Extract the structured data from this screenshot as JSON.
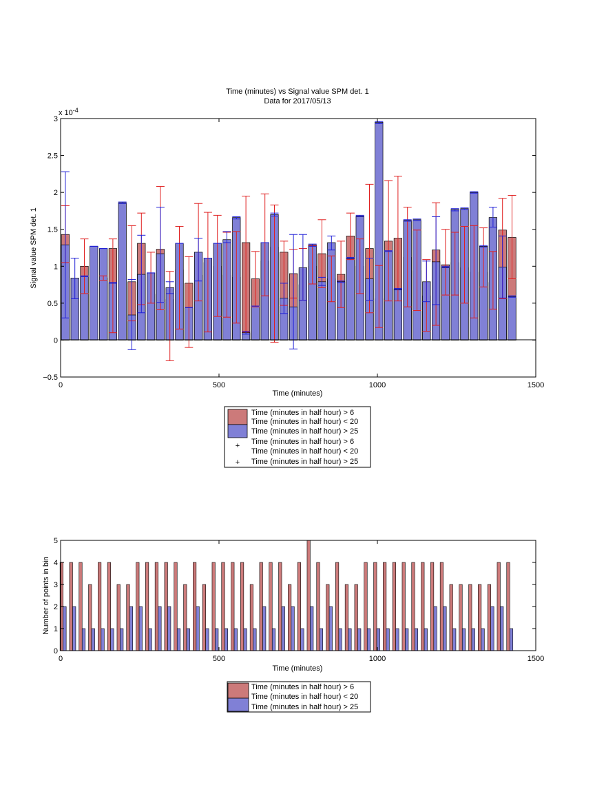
{
  "chart_data": [
    {
      "type": "bar",
      "title": "Time (minutes) vs Signal value SPM det. 1",
      "subtitle": "Data for 2017/05/13",
      "xlabel": "Time (minutes)",
      "ylabel": "Signal value SPM det. 1",
      "exponent_label": "x 10",
      "exponent_power": "-4",
      "xlim": [
        0,
        1500
      ],
      "ylim": [
        -0.5,
        3
      ],
      "x_ticks": [
        "0",
        "500",
        "1000",
        "1500"
      ],
      "y_ticks": [
        "−0.5",
        "0",
        "0.5",
        "1",
        "1.5",
        "2",
        "2.5",
        "3"
      ],
      "grid": false,
      "legend_position": "bottom-outside",
      "colors": {
        "red_bar": "#cc7a7a",
        "blue_bar": "#8080d6",
        "red_err": "#e02020",
        "blue_err": "#1f1fd6"
      },
      "legend": [
        "Time (minutes in half hour) > 6",
        "Time (minutes in half hour) < 20",
        "Time (minutes in half hour) > 25",
        "Time (minutes in half hour) > 6",
        "Time (minutes in half hour) < 20",
        "Time (minutes in half hour) > 25"
      ],
      "series": [
        {
          "x": [
            15,
            75,
            135,
            165,
            225,
            255,
            285,
            315,
            345,
            375,
            405,
            435,
            465,
            495,
            525,
            555,
            585,
            615,
            645,
            675,
            705,
            735,
            765,
            795,
            825,
            855,
            885,
            915,
            945,
            975,
            1005,
            1035,
            1065,
            1095,
            1125,
            1155,
            1185,
            1215,
            1245,
            1275,
            1305,
            1335,
            1365,
            1395,
            1425
          ],
          "values": [
            1.43,
            1.0,
            0.84,
            1.24,
            0.79,
            1.31,
            0.62,
            1.23,
            0.55,
            0.95,
            0.77,
            0.88,
            1.05,
            1.0,
            0.88,
            0.85,
            1.32,
            0.83,
            1.07,
            1.26,
            1.19,
            0.9,
            0.75,
            1.0,
            1.17,
            0.83,
            0.89,
            1.41,
            1.0,
            1.24,
            0.56,
            1.34,
            1.38,
            1.12,
            0.94,
            0.6,
            1.22,
            1.02,
            1.05,
            0.98,
            0.92,
            0.92,
            0.78,
            1.49,
            1.39
          ],
          "err_lo": [
            1.05,
            0.63,
            0.81,
            0.1,
            0.26,
            0.48,
            0.5,
            0.41,
            -0.28,
            0.15,
            -0.1,
            0.53,
            0.11,
            0.32,
            0.31,
            0.23,
            0.11,
            0.45,
            0.6,
            -0.03,
            0.47,
            0.57,
            0.54,
            0.76,
            0.71,
            0.52,
            0.44,
            1.09,
            0.63,
            0.37,
            0.17,
            0.53,
            0.53,
            0.45,
            0.4,
            0.12,
            0.2,
            0.61,
            0.61,
            0.5,
            0.3,
            0.72,
            0.42,
            0.56,
            0.83
          ],
          "err_hi": [
            1.82,
            1.37,
            0.87,
            1.37,
            1.55,
            1.72,
            1.19,
            2.08,
            0.93,
            1.54,
            1.13,
            1.85,
            1.73,
            1.69,
            1.46,
            1.47,
            1.95,
            1.2,
            1.98,
            1.83,
            1.34,
            1.23,
            1.24,
            1.28,
            1.63,
            1.14,
            1.34,
            1.72,
            1.37,
            2.11,
            1.01,
            2.16,
            2.22,
            1.8,
            1.49,
            1.09,
            1.86,
            1.5,
            1.46,
            1.54,
            1.55,
            1.52,
            1.2,
            1.92,
            1.96
          ]
        },
        {
          "x": [
            15,
            45,
            75,
            105,
            135,
            165,
            195,
            225,
            255,
            285,
            315,
            345,
            375,
            405,
            435,
            465,
            495,
            525,
            555,
            585,
            615,
            645,
            675,
            705,
            735,
            765,
            795,
            825,
            855,
            885,
            915,
            945,
            975,
            1005,
            1035,
            1065,
            1095,
            1125,
            1155,
            1185,
            1215,
            1245,
            1275,
            1305,
            1335,
            1365,
            1395,
            1425
          ],
          "values": [
            1.29,
            0.84,
            0.86,
            1.27,
            1.24,
            0.77,
            1.86,
            0.34,
            0.89,
            0.91,
            1.17,
            0.71,
            1.31,
            0.44,
            1.19,
            1.11,
            1.31,
            1.36,
            1.66,
            0.1,
            0.46,
            1.32,
            1.7,
            0.57,
            0.45,
            0.98,
            1.29,
            0.79,
            1.32,
            0.79,
            1.11,
            1.68,
            0.83,
            2.95,
            1.2,
            0.69,
            1.62,
            1.63,
            0.79,
            1.06,
            0.99,
            1.77,
            1.78,
            2.0,
            1.27,
            1.66,
            0.99,
            0.59
          ],
          "err_lo": [
            0.3,
            0.56,
            0.86,
            1.27,
            1.24,
            0.77,
            1.85,
            -0.13,
            0.37,
            0.91,
            0.51,
            0.63,
            1.31,
            0.44,
            0.8,
            1.11,
            1.31,
            1.32,
            1.64,
            0.08,
            0.46,
            1.32,
            1.68,
            0.36,
            -0.12,
            0.54,
            1.27,
            0.74,
            1.22,
            0.78,
            1.1,
            1.67,
            0.54,
            2.93,
            1.2,
            0.7,
            1.61,
            1.62,
            0.52,
            0.48,
            0.98,
            1.75,
            1.77,
            1.99,
            1.26,
            1.53,
            0.57,
            0.58
          ],
          "err_hi": [
            2.28,
            1.11,
            0.87,
            1.27,
            1.24,
            0.78,
            1.87,
            0.82,
            1.42,
            0.91,
            1.8,
            0.79,
            1.31,
            0.44,
            1.38,
            1.11,
            1.31,
            1.47,
            1.67,
            0.12,
            0.46,
            1.32,
            1.72,
            0.77,
            1.43,
            1.43,
            1.3,
            0.85,
            1.41,
            0.8,
            1.12,
            1.69,
            1.11,
            2.96,
            1.21,
            0.68,
            1.63,
            1.64,
            1.07,
            1.67,
            1.0,
            1.78,
            1.79,
            2.01,
            1.28,
            1.8,
            1.41,
            0.6
          ]
        }
      ]
    },
    {
      "type": "bar",
      "xlabel": "Time (minutes)",
      "ylabel": "Number of points in bin",
      "xlim": [
        0,
        1500
      ],
      "ylim": [
        0,
        5
      ],
      "x_ticks": [
        "0",
        "500",
        "1000",
        "1500"
      ],
      "y_ticks": [
        "0",
        "1",
        "2",
        "3",
        "4",
        "5"
      ],
      "grid": false,
      "legend_position": "bottom-outside",
      "legend": [
        "Time (minutes in half hour) > 6",
        "Time (minutes in half hour) < 20",
        "Time (minutes in half hour) > 25"
      ],
      "series": [
        {
          "x": [
            15,
            45,
            75,
            105,
            135,
            165,
            195,
            225,
            255,
            285,
            315,
            345,
            375,
            405,
            435,
            465,
            495,
            525,
            555,
            585,
            615,
            645,
            675,
            705,
            735,
            765,
            795,
            825,
            855,
            885,
            915,
            945,
            975,
            1005,
            1035,
            1065,
            1095,
            1125,
            1155,
            1185,
            1215,
            1245,
            1275,
            1305,
            1335,
            1365,
            1395,
            1425
          ],
          "values": [
            4,
            4,
            4,
            3,
            4,
            4,
            3,
            3,
            4,
            4,
            4,
            4,
            4,
            3,
            4,
            3,
            4,
            4,
            4,
            4,
            3,
            4,
            4,
            4,
            3,
            4,
            5,
            4,
            3,
            4,
            3,
            3,
            4,
            4,
            4,
            4,
            4,
            4,
            4,
            4,
            4,
            3,
            3,
            3,
            3,
            3,
            4,
            4
          ]
        },
        {
          "x": [
            15,
            45,
            75,
            105,
            135,
            165,
            195,
            225,
            255,
            285,
            315,
            345,
            375,
            405,
            435,
            465,
            495,
            525,
            555,
            585,
            615,
            645,
            675,
            705,
            735,
            765,
            795,
            825,
            855,
            885,
            915,
            945,
            975,
            1005,
            1035,
            1065,
            1095,
            1125,
            1155,
            1185,
            1215,
            1245,
            1275,
            1305,
            1335,
            1365,
            1395,
            1425
          ],
          "values": [
            2,
            2,
            1,
            1,
            1,
            1,
            1,
            2,
            2,
            1,
            2,
            2,
            1,
            1,
            2,
            1,
            1,
            1,
            1,
            1,
            1,
            2,
            1,
            2,
            2,
            1,
            2,
            1,
            2,
            1,
            1,
            1,
            1,
            1,
            1,
            1,
            1,
            1,
            1,
            2,
            2,
            1,
            1,
            1,
            1,
            2,
            2,
            1
          ]
        }
      ]
    }
  ]
}
